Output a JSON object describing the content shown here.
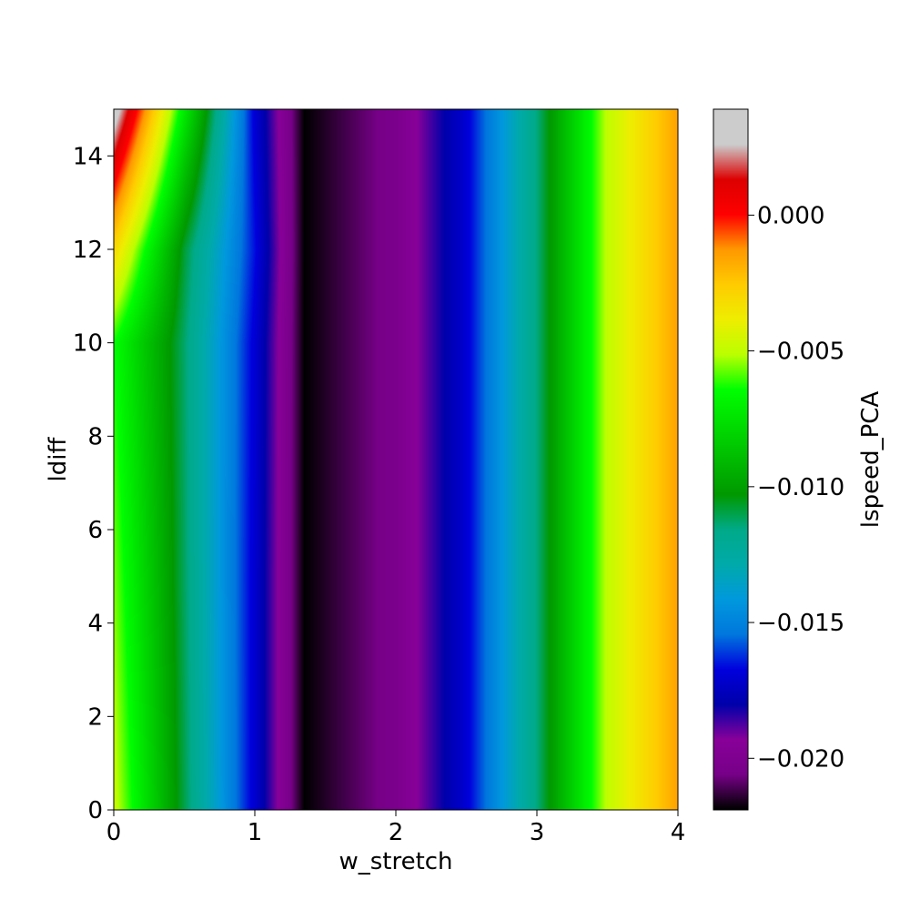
{
  "chart_data": {
    "type": "heatmap",
    "xlabel": "w_stretch",
    "ylabel": "ldiff",
    "colorbar_label": "lspeed_PCA",
    "colormap": "nipy_spectral",
    "xlim": [
      0,
      4
    ],
    "ylim": [
      0,
      15
    ],
    "xticks": [
      "0",
      "1",
      "2",
      "3",
      "4"
    ],
    "yticks": [
      "0",
      "2",
      "4",
      "6",
      "8",
      "10",
      "12",
      "14"
    ],
    "colorbar_range": [
      -0.0219,
      0.0039
    ],
    "colorbar_ticks": [
      "0.000",
      "−0.005",
      "−0.010",
      "−0.015",
      "−0.020"
    ],
    "colorbar_tick_values": [
      0.0,
      -0.005,
      -0.01,
      -0.015,
      -0.02
    ],
    "x": [
      0,
      0.5,
      1.0,
      1.35,
      2.0,
      2.5,
      3.0,
      3.5,
      4.0
    ],
    "y": [
      0,
      5,
      10,
      12,
      15
    ],
    "z": [
      [
        -0.0048,
        -0.011,
        -0.0171,
        -0.0219,
        -0.0203,
        -0.017,
        -0.0115,
        -0.005,
        -0.0015
      ],
      [
        -0.0056,
        -0.0112,
        -0.0171,
        -0.0219,
        -0.0203,
        -0.017,
        -0.0115,
        -0.005,
        -0.0015
      ],
      [
        -0.0064,
        -0.0113,
        -0.017,
        -0.0219,
        -0.0203,
        -0.017,
        -0.0115,
        -0.005,
        -0.0015
      ],
      [
        -0.003,
        -0.0108,
        -0.0166,
        -0.0219,
        -0.0203,
        -0.017,
        -0.0115,
        -0.005,
        -0.0015
      ],
      [
        0.0035,
        -0.0072,
        -0.017,
        -0.0219,
        -0.0203,
        -0.017,
        -0.0115,
        -0.005,
        -0.0015
      ]
    ]
  }
}
